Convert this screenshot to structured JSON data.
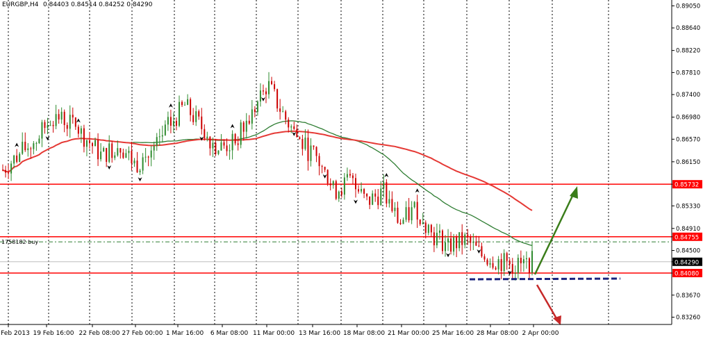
{
  "header": {
    "symbol_info": "EURGBP,H4",
    "ohlc": "0.84403 0.84514 0.84252 0.84290"
  },
  "order_label": "1758182 buy",
  "colors": {
    "bull": "#2e8b2e",
    "bear": "#cc0000",
    "ma_fast": "#2e7d32",
    "ma_slow": "#e53935",
    "hline": "#ff0000",
    "support_dash": "#1a237e",
    "arrow_up": "#3a7d1a",
    "arrow_down": "#c62828",
    "grid": "#000000"
  },
  "chart_data": {
    "type": "candlestick",
    "price_axis": [
      "0.89050",
      "0.88640",
      "0.88220",
      "0.87810",
      "0.87400",
      "0.86980",
      "0.86570",
      "0.86150",
      "0.85732",
      "0.85330",
      "0.84910",
      "0.84755",
      "0.84500",
      "0.84290",
      "0.84080",
      "0.83670",
      "0.83260"
    ],
    "ylim": [
      0.8315,
      0.8912
    ],
    "time_axis": [
      "Feb 2013",
      "19 Feb 16:00",
      "22 Feb 08:00",
      "27 Feb 00:00",
      "1 Mar 16:00",
      "6 Mar 08:00",
      "11 Mar 00:00",
      "13 Mar 16:00",
      "18 Mar 08:00",
      "21 Mar 00:00",
      "25 Mar 16:00",
      "28 Mar 08:00",
      "2 Apr 00:00"
    ],
    "horizontal_lines": [
      {
        "price": 0.85732,
        "label": "0.85732"
      },
      {
        "price": 0.84755,
        "label": "0.84755"
      },
      {
        "price": 0.8408,
        "label": "0.84080"
      }
    ],
    "order_line_price": 0.8466,
    "current_price": "0.84290",
    "trend_path": [
      0.86,
      0.863,
      0.8655,
      0.87,
      0.869,
      0.866,
      0.8625,
      0.865,
      0.861,
      0.863,
      0.868,
      0.872,
      0.868,
      0.864,
      0.865,
      0.87,
      0.876,
      0.87,
      0.865,
      0.862,
      0.856,
      0.858,
      0.854,
      0.856,
      0.85,
      0.853,
      0.848,
      0.846,
      0.847,
      0.844,
      0.843,
      0.842,
      0.843
    ]
  }
}
